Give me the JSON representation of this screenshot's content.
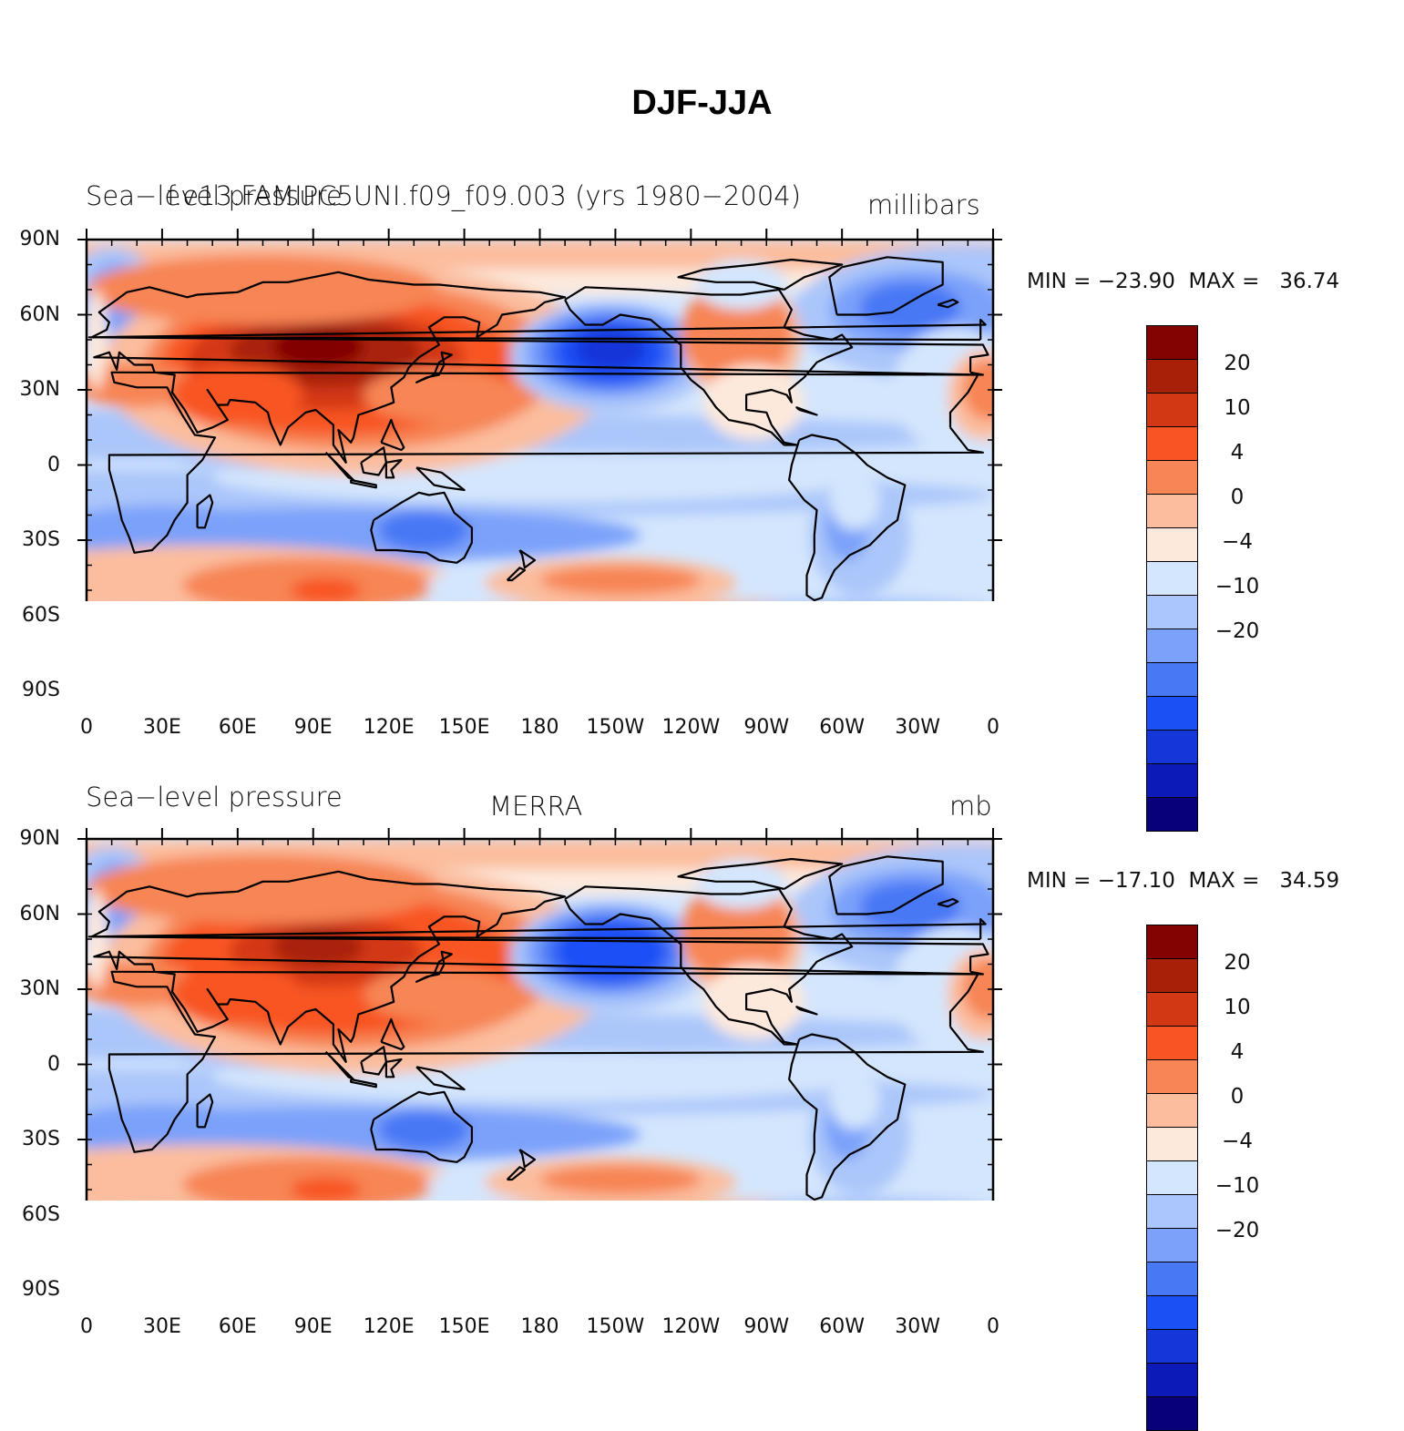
{
  "title": "DJF-JJA",
  "colors": [
    "#08007a",
    "#0c1bb7",
    "#1536d8",
    "#1b50f5",
    "#4978f5",
    "#7ba1fa",
    "#abc6fa",
    "#d4e6fd",
    "#fde9dc",
    "#fbbd9e",
    "#f78555",
    "#f85524",
    "#d33814",
    "#a92008",
    "#830202"
  ],
  "colorbar_labels": [
    "20",
    "10",
    "4",
    "0",
    "−4",
    "−10",
    "−20"
  ],
  "y_ticks": [
    "90N",
    "60N",
    "30N",
    "0",
    "30S",
    "60S",
    "90S"
  ],
  "x_ticks": [
    "0",
    "30E",
    "60E",
    "90E",
    "120E",
    "150E",
    "180",
    "150W",
    "120W",
    "90W",
    "60W",
    "30W",
    "0"
  ],
  "panels": [
    {
      "left_title": "Sea−level pressure",
      "center_title": "f.e13.FAMIPC5UNI.f09_f09.003 (yrs 1980−2004)",
      "right_title": "millibars",
      "min_max": "MIN = −23.90  MAX =   36.74",
      "variant": 0
    },
    {
      "left_title": "Sea−level pressure",
      "center_title": "MERRA",
      "right_title": "mb",
      "min_max": "MIN = −17.10  MAX =   34.59",
      "variant": 1
    }
  ]
}
